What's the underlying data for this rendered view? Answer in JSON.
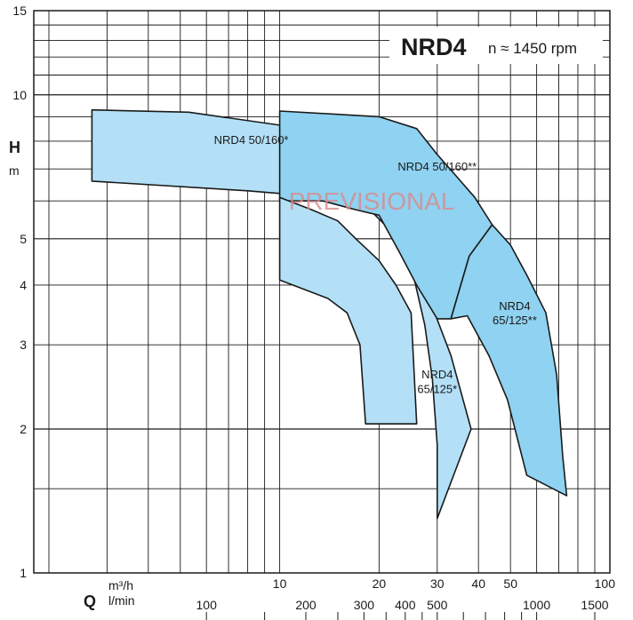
{
  "chart_data": {
    "type": "area",
    "title": "NRD4",
    "subtitle": "n ≈ 1450 rpm",
    "watermark": "PREVISIONAL",
    "ylabel": "H",
    "yunit": "m",
    "xlabel": "Q",
    "xunit_top": "m³/h",
    "xunit_bottom": "l/min",
    "y_scale": "log",
    "x_scale": "log",
    "xlim": [
      1.8,
      100
    ],
    "ylim": [
      1,
      15
    ],
    "y_ticks": [
      1,
      2,
      3,
      4,
      5,
      10,
      15
    ],
    "x_ticks_top": [
      10,
      20,
      30,
      40,
      50,
      100
    ],
    "x_ticks_bottom_lmin": [
      100,
      200,
      300,
      400,
      500,
      1000,
      1500
    ],
    "grid": true,
    "colors": {
      "light_area": "#b3e0f7",
      "medium_area": "#8fd2f1",
      "outline": "#1a1a1a",
      "grid": "#1a1a1a",
      "watermark": "#d98a8a"
    },
    "series": [
      {
        "name": "NRD4 50/160*",
        "color": "#b3e0f7",
        "label_at": {
          "x": 8.2,
          "y": 7.9
        },
        "points": [
          [
            2.7,
            9.3
          ],
          [
            5.3,
            9.2
          ],
          [
            10.5,
            8.6
          ],
          [
            13,
            8.15
          ],
          [
            16,
            7.5
          ],
          [
            19.5,
            6.5
          ],
          [
            22,
            5.5
          ],
          [
            25,
            4.4
          ],
          [
            27.5,
            3.3
          ],
          [
            29,
            2.55
          ],
          [
            30,
            1.85
          ],
          [
            30,
            1.3
          ],
          [
            38,
            2.0
          ],
          [
            33,
            2.85
          ],
          [
            27,
            4.1
          ],
          [
            22,
            5.15
          ],
          [
            18.5,
            5.8
          ],
          [
            14,
            6.1
          ],
          [
            8,
            6.3
          ],
          [
            2.7,
            6.6
          ]
        ]
      },
      {
        "name": "NRD4 50/160**",
        "color": "#8fd2f1",
        "label_at": {
          "x": 30,
          "y": 6.95
        },
        "points": [
          [
            10,
            9.25
          ],
          [
            20,
            9.0
          ],
          [
            26,
            8.5
          ],
          [
            30,
            7.5
          ],
          [
            34,
            6.8
          ],
          [
            39,
            6.1
          ],
          [
            44,
            5.35
          ],
          [
            37.5,
            4.6
          ],
          [
            33,
            3.4
          ],
          [
            30,
            3.4
          ],
          [
            26,
            4.0
          ],
          [
            23,
            4.7
          ],
          [
            20,
            5.6
          ],
          [
            17,
            5.75
          ],
          [
            13.5,
            6.0
          ],
          [
            10,
            6.0
          ]
        ]
      },
      {
        "name": "NRD4 65/125*",
        "color": "#b3e0f7",
        "label_at": {
          "x": 30,
          "y": 2.55
        },
        "points": [
          [
            10,
            6.1
          ],
          [
            12.5,
            5.75
          ],
          [
            15,
            5.45
          ],
          [
            17,
            5.0
          ],
          [
            20,
            4.5
          ],
          [
            22.5,
            4.0
          ],
          [
            25,
            3.5
          ],
          [
            26,
            2.05
          ],
          [
            18.2,
            2.05
          ],
          [
            17.5,
            3.0
          ],
          [
            16,
            3.5
          ],
          [
            14,
            3.75
          ],
          [
            10,
            4.1
          ]
        ]
      },
      {
        "name": "NRD4 65/125**",
        "color": "#8fd2f1",
        "label_at": {
          "x": 51.5,
          "y": 3.55
        },
        "points": [
          [
            44,
            5.35
          ],
          [
            50,
            4.85
          ],
          [
            56,
            4.2
          ],
          [
            64,
            3.5
          ],
          [
            69,
            2.6
          ],
          [
            72,
            1.75
          ],
          [
            74,
            1.45
          ],
          [
            56,
            1.6
          ],
          [
            49,
            2.3
          ],
          [
            43,
            2.85
          ],
          [
            37,
            3.45
          ],
          [
            33,
            3.4
          ],
          [
            37.5,
            4.6
          ]
        ]
      }
    ]
  }
}
